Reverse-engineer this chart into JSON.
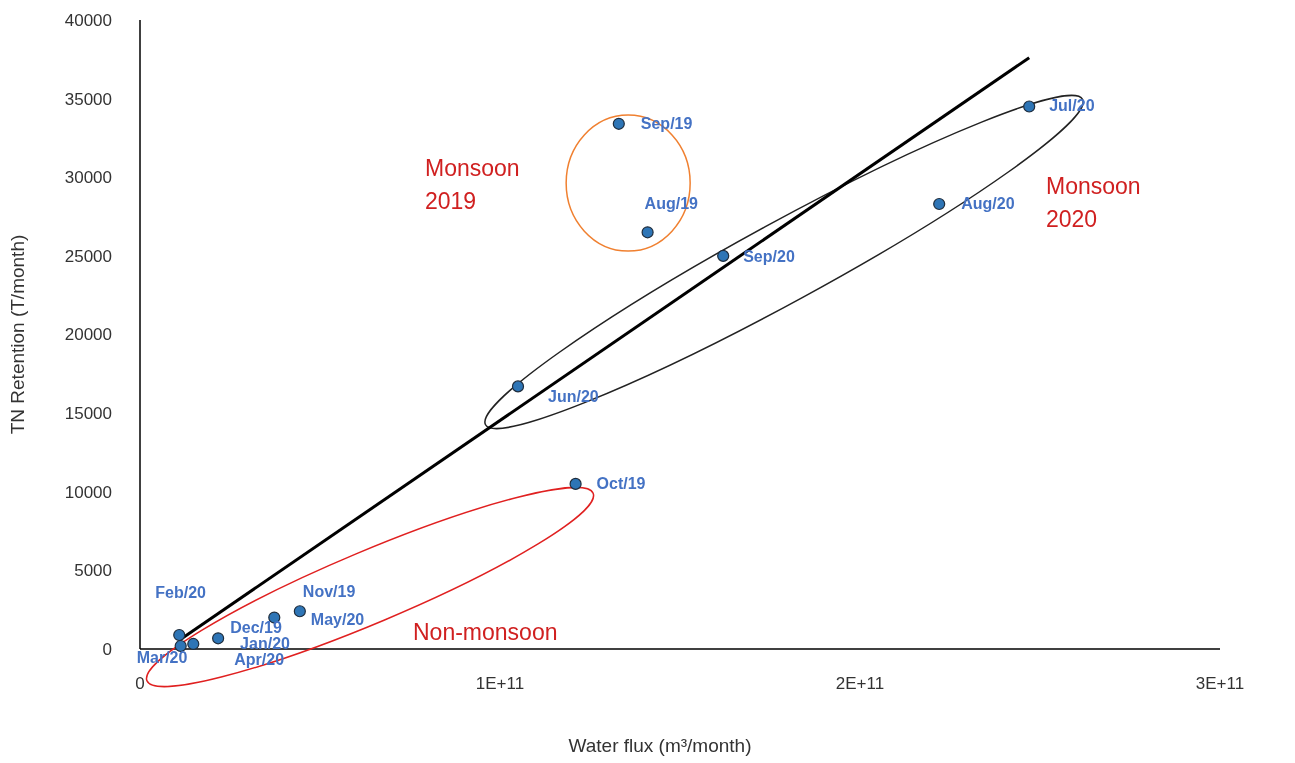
{
  "chart_data": {
    "type": "scatter",
    "xlabel": "Water flux (m³/month)",
    "ylabel": "TN Retention (T/month)",
    "xlim": [
      0,
      300000000000.0
    ],
    "xticks": [
      0,
      {
        "value": 100000000000.0,
        "label": "1E+11"
      },
      {
        "value": 200000000000.0,
        "label": "2E+11"
      },
      {
        "value": 300000000000.0,
        "label": "3E+11"
      }
    ],
    "ylim": [
      0,
      40000
    ],
    "yticks": [
      0,
      5000,
      10000,
      15000,
      20000,
      25000,
      30000,
      35000,
      40000
    ],
    "grid": false,
    "series": [
      {
        "marker": "circle",
        "color": "#2e75b6",
        "x": [
          133000000000.0,
          141000000000.0,
          247000000000.0,
          222000000000.0,
          162000000000.0,
          105000000000.0,
          121000000000.0,
          10900000000.0,
          11300000000.0,
          14800000000.0,
          21700000000.0,
          37300000000.0,
          44400000000.0
        ],
        "values": [
          33400,
          26500,
          34500,
          28300,
          25000,
          16700,
          10500,
          890,
          190,
          320,
          680,
          2000,
          2400
        ]
      },
      {
        "type": "line",
        "color": "#000000",
        "x": [
          11000000000.0,
          247000000000.0
        ],
        "values": [
          570,
          37600
        ]
      }
    ],
    "annotations": [
      {
        "text": "Sep/19",
        "x": 133000000000.0,
        "y": 33400
      },
      {
        "text": "Aug/19",
        "x": 141000000000.0,
        "y": 26500
      },
      {
        "text": "Jul/20",
        "x": 247000000000.0,
        "y": 34500
      },
      {
        "text": "Aug/20",
        "x": 222000000000.0,
        "y": 28300
      },
      {
        "text": "Sep/20",
        "x": 162000000000.0,
        "y": 25000
      },
      {
        "text": "Jun/20",
        "x": 105000000000.0,
        "y": 16700
      },
      {
        "text": "Oct/19",
        "x": 121000000000.0,
        "y": 10500
      },
      {
        "text": "Feb/20",
        "x": 10900000000.0,
        "y": 890
      },
      {
        "text": "Mar/20",
        "x": 11300000000.0,
        "y": 190
      },
      {
        "text": "Apr/20",
        "x": 14800000000.0,
        "y": 320
      },
      {
        "text": "Jan/20",
        "x": 21700000000.0,
        "y": 680
      },
      {
        "text": "Dec/19",
        "x": 37300000000.0,
        "y": 2000
      },
      {
        "text": "Nov/19",
        "x": 44400000000.0,
        "y": 2400
      },
      {
        "text": "May/20",
        "x": 44400000000.0,
        "y": 2400
      },
      "Monsoon\n2019",
      "Monsoon\n2020",
      "Non-monsoon"
    ]
  }
}
